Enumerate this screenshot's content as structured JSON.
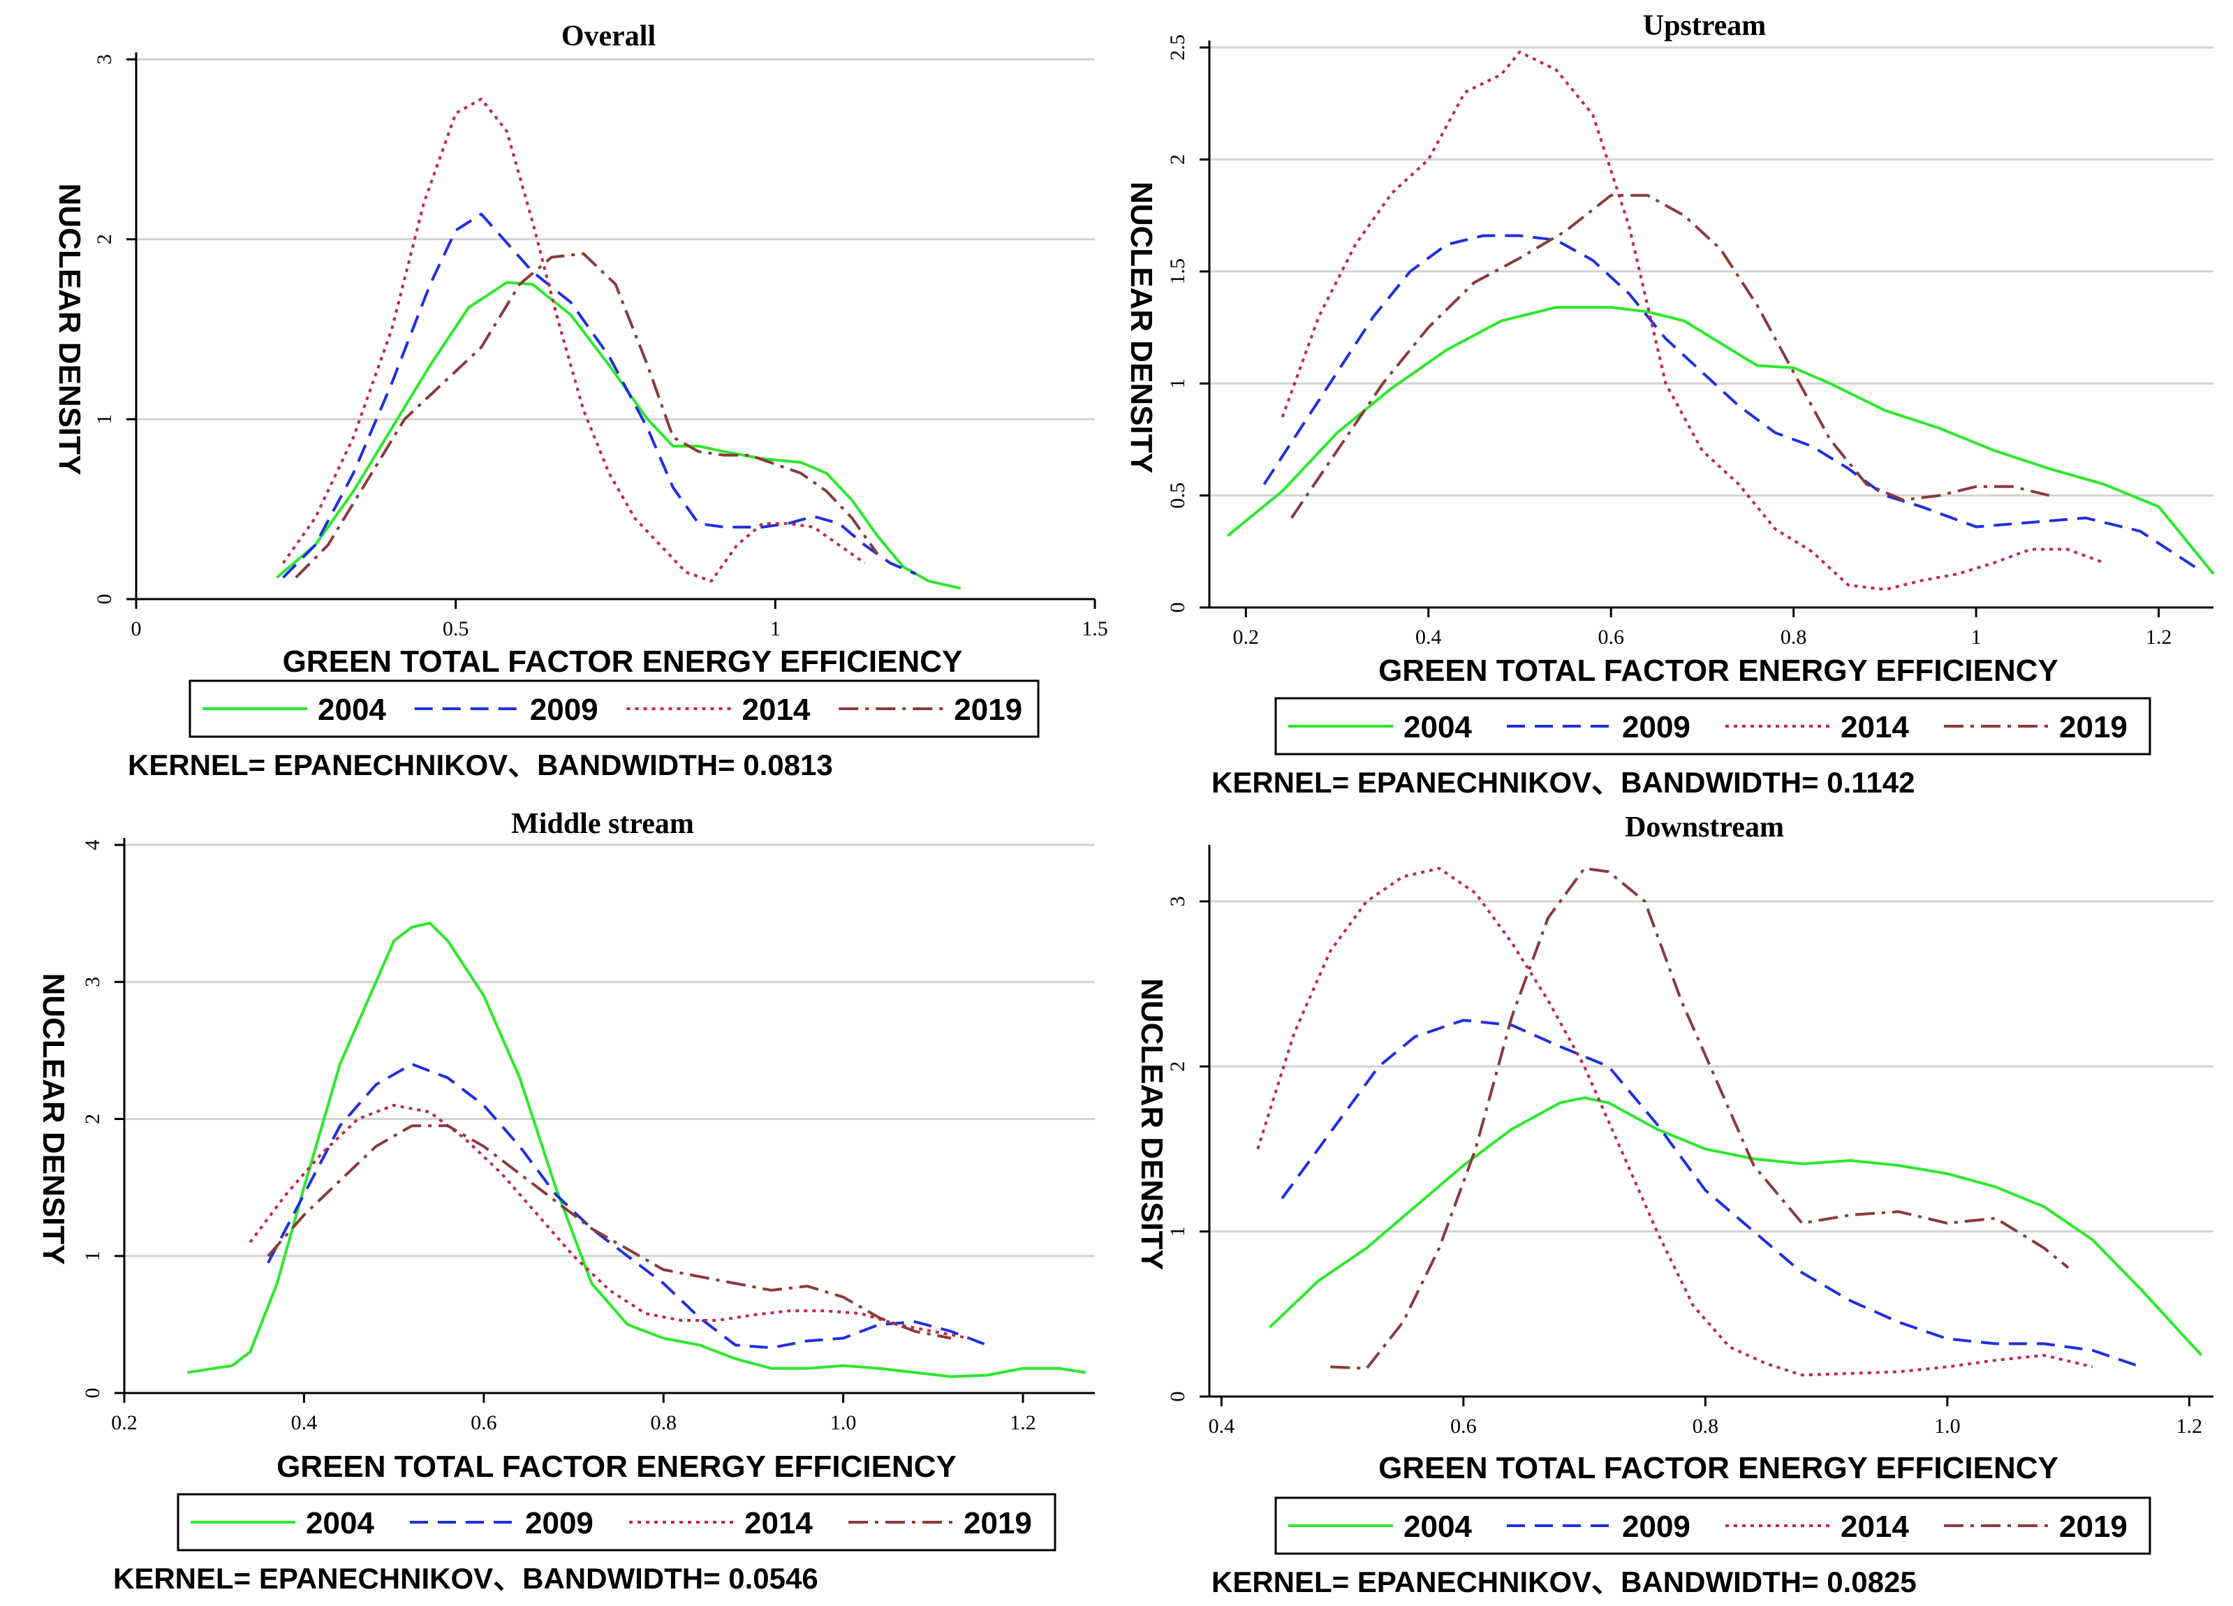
{
  "figure": {
    "panels_note": "2x2 grid of kernel density estimates"
  },
  "series_styles": [
    {
      "year": "2004",
      "color": "#2de82d",
      "dash": "none"
    },
    {
      "year": "2009",
      "color": "#1f2fe0",
      "dash": "dashed"
    },
    {
      "year": "2014",
      "color": "#c0284a",
      "dash": "dotted"
    },
    {
      "year": "2019",
      "color": "#8a3a3a",
      "dash": "dashdot"
    }
  ],
  "chart_data": [
    {
      "type": "line",
      "title": "Overall",
      "xlabel": "GREEN TOTAL FACTOR ENERGY EFFICIENCY",
      "ylabel": "NUCLEAR DENSITY",
      "xlim": [
        0,
        1.5
      ],
      "ylim": [
        0,
        3
      ],
      "xticks": [
        0,
        0.5,
        1,
        1.5
      ],
      "xtick_labels": [
        "0",
        "0.5",
        "1",
        "1.5"
      ],
      "yticks": [
        0,
        1,
        2,
        3
      ],
      "ytick_labels": [
        "0",
        "1",
        "2",
        "3"
      ],
      "note": "KERNEL= EPANECHNIKOV、BANDWIDTH= 0.0813",
      "legend": [
        "2004",
        "2009",
        "2014",
        "2019"
      ],
      "series": [
        {
          "name": "2004",
          "x": [
            0.22,
            0.28,
            0.34,
            0.4,
            0.46,
            0.52,
            0.58,
            0.62,
            0.68,
            0.74,
            0.8,
            0.84,
            0.88,
            0.92,
            0.98,
            1.04,
            1.08,
            1.12,
            1.16,
            1.2,
            1.24,
            1.29
          ],
          "y": [
            0.12,
            0.3,
            0.6,
            0.95,
            1.3,
            1.62,
            1.76,
            1.75,
            1.58,
            1.3,
            1.0,
            0.85,
            0.85,
            0.82,
            0.78,
            0.76,
            0.7,
            0.55,
            0.35,
            0.18,
            0.1,
            0.06
          ]
        },
        {
          "name": "2009",
          "x": [
            0.23,
            0.28,
            0.34,
            0.4,
            0.46,
            0.5,
            0.54,
            0.58,
            0.62,
            0.68,
            0.74,
            0.8,
            0.84,
            0.88,
            0.92,
            0.98,
            1.02,
            1.06,
            1.1,
            1.14,
            1.18,
            1.22
          ],
          "y": [
            0.12,
            0.3,
            0.7,
            1.2,
            1.75,
            2.05,
            2.14,
            1.98,
            1.82,
            1.65,
            1.35,
            0.95,
            0.62,
            0.42,
            0.4,
            0.4,
            0.42,
            0.46,
            0.42,
            0.3,
            0.2,
            0.14
          ]
        },
        {
          "name": "2014",
          "x": [
            0.23,
            0.28,
            0.34,
            0.4,
            0.45,
            0.5,
            0.54,
            0.58,
            0.62,
            0.66,
            0.7,
            0.74,
            0.78,
            0.82,
            0.86,
            0.9,
            0.94,
            0.98,
            1.02,
            1.06,
            1.1,
            1.14
          ],
          "y": [
            0.2,
            0.45,
            0.9,
            1.5,
            2.2,
            2.7,
            2.78,
            2.6,
            2.1,
            1.55,
            1.05,
            0.7,
            0.45,
            0.3,
            0.15,
            0.1,
            0.3,
            0.42,
            0.42,
            0.4,
            0.3,
            0.2
          ]
        },
        {
          "name": "2019",
          "x": [
            0.25,
            0.3,
            0.36,
            0.42,
            0.48,
            0.54,
            0.6,
            0.65,
            0.7,
            0.75,
            0.8,
            0.84,
            0.88,
            0.92,
            0.96,
            1.0,
            1.04,
            1.08,
            1.12,
            1.16
          ],
          "y": [
            0.12,
            0.3,
            0.65,
            1.0,
            1.2,
            1.4,
            1.75,
            1.9,
            1.92,
            1.75,
            1.3,
            0.9,
            0.82,
            0.8,
            0.8,
            0.75,
            0.7,
            0.6,
            0.45,
            0.25
          ]
        }
      ]
    },
    {
      "type": "line",
      "title": "Upstream",
      "xlabel": "GREEN TOTAL FACTOR ENERGY EFFICIENCY",
      "ylabel": "NUCLEAR DENSITY",
      "xlim": [
        0.16,
        1.26
      ],
      "ylim": [
        0,
        2.5
      ],
      "xticks": [
        0.2,
        0.4,
        0.6,
        0.8,
        1,
        1.2
      ],
      "xtick_labels": [
        "0.2",
        "0.4",
        "0.6",
        "0.8",
        "1",
        "1.2"
      ],
      "yticks": [
        0,
        0.5,
        1,
        1.5,
        2,
        2.5
      ],
      "ytick_labels": [
        "0",
        "0.5",
        "1",
        "1.5",
        "2",
        "2.5"
      ],
      "note": "KERNEL= EPANECHNIKOV、BANDWIDTH= 0.1142",
      "legend": [
        "2004",
        "2009",
        "2014",
        "2019"
      ],
      "series": [
        {
          "name": "2004",
          "x": [
            0.18,
            0.24,
            0.3,
            0.36,
            0.42,
            0.48,
            0.54,
            0.6,
            0.64,
            0.68,
            0.72,
            0.76,
            0.8,
            0.84,
            0.9,
            0.96,
            1.02,
            1.08,
            1.14,
            1.2,
            1.26
          ],
          "y": [
            0.32,
            0.52,
            0.78,
            0.98,
            1.15,
            1.28,
            1.34,
            1.34,
            1.32,
            1.28,
            1.18,
            1.08,
            1.07,
            1.0,
            0.88,
            0.8,
            0.7,
            0.62,
            0.55,
            0.45,
            0.15
          ]
        },
        {
          "name": "2009",
          "x": [
            0.22,
            0.26,
            0.3,
            0.34,
            0.38,
            0.42,
            0.46,
            0.5,
            0.54,
            0.58,
            0.62,
            0.66,
            0.7,
            0.74,
            0.78,
            0.82,
            0.86,
            0.9,
            0.94,
            1.0,
            1.06,
            1.12,
            1.18,
            1.24
          ],
          "y": [
            0.55,
            0.8,
            1.05,
            1.3,
            1.5,
            1.62,
            1.66,
            1.66,
            1.64,
            1.55,
            1.4,
            1.2,
            1.05,
            0.9,
            0.78,
            0.72,
            0.62,
            0.5,
            0.45,
            0.36,
            0.38,
            0.4,
            0.34,
            0.18
          ]
        },
        {
          "name": "2014",
          "x": [
            0.24,
            0.28,
            0.32,
            0.36,
            0.4,
            0.44,
            0.48,
            0.5,
            0.54,
            0.58,
            0.62,
            0.66,
            0.7,
            0.74,
            0.78,
            0.82,
            0.86,
            0.9,
            0.94,
            0.98,
            1.02,
            1.06,
            1.1,
            1.14
          ],
          "y": [
            0.85,
            1.3,
            1.62,
            1.85,
            2.0,
            2.3,
            2.38,
            2.48,
            2.4,
            2.2,
            1.7,
            1.0,
            0.7,
            0.55,
            0.35,
            0.25,
            0.1,
            0.08,
            0.12,
            0.15,
            0.2,
            0.26,
            0.26,
            0.2
          ]
        },
        {
          "name": "2019",
          "x": [
            0.25,
            0.3,
            0.35,
            0.4,
            0.45,
            0.5,
            0.55,
            0.6,
            0.64,
            0.68,
            0.72,
            0.76,
            0.8,
            0.84,
            0.88,
            0.92,
            0.96,
            1.0,
            1.04,
            1.08
          ],
          "y": [
            0.4,
            0.7,
            1.0,
            1.25,
            1.45,
            1.56,
            1.68,
            1.84,
            1.84,
            1.75,
            1.6,
            1.35,
            1.05,
            0.75,
            0.55,
            0.48,
            0.5,
            0.54,
            0.54,
            0.5
          ]
        }
      ]
    },
    {
      "type": "line",
      "title": "Middle stream",
      "xlabel": "GREEN TOTAL FACTOR ENERGY EFFICIENCY",
      "ylabel": "NUCLEAR DENSITY",
      "xlim": [
        0.2,
        1.28
      ],
      "ylim": [
        0,
        4
      ],
      "xticks": [
        0.2,
        0.4,
        0.6,
        0.8,
        1.0,
        1.2
      ],
      "xtick_labels": [
        "0.2",
        "0.4",
        "0.6",
        "0.8",
        "1.0",
        "1.2"
      ],
      "yticks": [
        0,
        1,
        2,
        3,
        4
      ],
      "ytick_labels": [
        "0",
        "1",
        "2",
        "3",
        "4"
      ],
      "note": "KERNEL= EPANECHNIKOV、BANDWIDTH= 0.0546",
      "legend": [
        "2004",
        "2009",
        "2014",
        "2019"
      ],
      "series": [
        {
          "name": "2004",
          "x": [
            0.27,
            0.3,
            0.32,
            0.34,
            0.37,
            0.4,
            0.44,
            0.48,
            0.5,
            0.52,
            0.54,
            0.56,
            0.6,
            0.64,
            0.68,
            0.72,
            0.76,
            0.8,
            0.84,
            0.88,
            0.92,
            0.96,
            1.0,
            1.04,
            1.08,
            1.12,
            1.16,
            1.2,
            1.24,
            1.27
          ],
          "y": [
            0.15,
            0.18,
            0.2,
            0.3,
            0.8,
            1.5,
            2.4,
            3.0,
            3.3,
            3.4,
            3.43,
            3.3,
            2.9,
            2.3,
            1.5,
            0.8,
            0.5,
            0.4,
            0.35,
            0.25,
            0.18,
            0.18,
            0.2,
            0.18,
            0.15,
            0.12,
            0.13,
            0.18,
            0.18,
            0.15
          ]
        },
        {
          "name": "2009",
          "x": [
            0.36,
            0.4,
            0.44,
            0.48,
            0.52,
            0.56,
            0.6,
            0.64,
            0.68,
            0.72,
            0.76,
            0.8,
            0.84,
            0.88,
            0.92,
            0.96,
            1.0,
            1.04,
            1.08,
            1.12,
            1.16
          ],
          "y": [
            0.95,
            1.45,
            1.95,
            2.25,
            2.4,
            2.3,
            2.1,
            1.8,
            1.45,
            1.2,
            1.0,
            0.8,
            0.55,
            0.35,
            0.33,
            0.38,
            0.4,
            0.5,
            0.52,
            0.45,
            0.35
          ]
        },
        {
          "name": "2014",
          "x": [
            0.34,
            0.38,
            0.42,
            0.46,
            0.5,
            0.54,
            0.58,
            0.62,
            0.66,
            0.7,
            0.74,
            0.78,
            0.82,
            0.86,
            0.9,
            0.94,
            0.98,
            1.02,
            1.06,
            1.1,
            1.14
          ],
          "y": [
            1.1,
            1.45,
            1.75,
            2.0,
            2.1,
            2.05,
            1.85,
            1.6,
            1.3,
            1.0,
            0.75,
            0.58,
            0.53,
            0.53,
            0.57,
            0.6,
            0.6,
            0.58,
            0.5,
            0.45,
            0.4
          ]
        },
        {
          "name": "2019",
          "x": [
            0.36,
            0.4,
            0.44,
            0.48,
            0.52,
            0.56,
            0.6,
            0.64,
            0.68,
            0.72,
            0.76,
            0.8,
            0.84,
            0.88,
            0.92,
            0.96,
            1.0,
            1.04,
            1.08,
            1.12
          ],
          "y": [
            1.0,
            1.3,
            1.55,
            1.8,
            1.95,
            1.95,
            1.8,
            1.6,
            1.4,
            1.2,
            1.05,
            0.9,
            0.85,
            0.8,
            0.75,
            0.78,
            0.7,
            0.55,
            0.45,
            0.4
          ]
        }
      ]
    },
    {
      "type": "line",
      "title": "Downstream",
      "xlabel": "GREEN TOTAL FACTOR ENERGY EFFICIENCY",
      "ylabel": "NUCLEAR DENSITY",
      "xlim": [
        0.39,
        1.22
      ],
      "ylim": [
        0,
        3.3
      ],
      "xticks": [
        0.4,
        0.6,
        0.8,
        1.0,
        1.2
      ],
      "xtick_labels": [
        "0.4",
        "0.6",
        "0.8",
        "1.0",
        "1.2"
      ],
      "yticks": [
        0,
        1,
        2,
        3
      ],
      "ytick_labels": [
        "0",
        "1",
        "2",
        "3"
      ],
      "note": "KERNEL= EPANECHNIKOV、BANDWIDTH= 0.0825",
      "legend": [
        "2004",
        "2009",
        "2014",
        "2019"
      ],
      "series": [
        {
          "name": "2004",
          "x": [
            0.44,
            0.48,
            0.52,
            0.56,
            0.6,
            0.64,
            0.68,
            0.7,
            0.72,
            0.76,
            0.8,
            0.84,
            0.88,
            0.92,
            0.96,
            1.0,
            1.04,
            1.08,
            1.12,
            1.16,
            1.21
          ],
          "y": [
            0.42,
            0.7,
            0.9,
            1.15,
            1.4,
            1.62,
            1.78,
            1.81,
            1.78,
            1.62,
            1.5,
            1.44,
            1.41,
            1.43,
            1.4,
            1.35,
            1.27,
            1.15,
            0.95,
            0.65,
            0.25
          ]
        },
        {
          "name": "2009",
          "x": [
            0.45,
            0.49,
            0.53,
            0.56,
            0.6,
            0.64,
            0.68,
            0.72,
            0.76,
            0.8,
            0.84,
            0.88,
            0.92,
            0.96,
            1.0,
            1.04,
            1.08,
            1.12,
            1.16
          ],
          "y": [
            1.2,
            1.6,
            2.0,
            2.18,
            2.28,
            2.25,
            2.12,
            2.0,
            1.65,
            1.25,
            1.0,
            0.75,
            0.58,
            0.45,
            0.35,
            0.32,
            0.32,
            0.28,
            0.18
          ]
        },
        {
          "name": "2014",
          "x": [
            0.43,
            0.46,
            0.49,
            0.52,
            0.55,
            0.58,
            0.61,
            0.64,
            0.67,
            0.7,
            0.73,
            0.76,
            0.79,
            0.82,
            0.85,
            0.88,
            0.92,
            0.96,
            1.0,
            1.04,
            1.08,
            1.12
          ],
          "y": [
            1.5,
            2.2,
            2.7,
            3.0,
            3.15,
            3.2,
            3.05,
            2.75,
            2.4,
            2.0,
            1.5,
            1.0,
            0.55,
            0.3,
            0.2,
            0.13,
            0.14,
            0.15,
            0.18,
            0.22,
            0.25,
            0.18
          ]
        },
        {
          "name": "2019",
          "x": [
            0.49,
            0.52,
            0.55,
            0.58,
            0.61,
            0.64,
            0.67,
            0.7,
            0.72,
            0.75,
            0.78,
            0.81,
            0.84,
            0.88,
            0.92,
            0.96,
            1.0,
            1.04,
            1.08,
            1.1
          ],
          "y": [
            0.18,
            0.17,
            0.45,
            0.9,
            1.5,
            2.3,
            2.9,
            3.2,
            3.18,
            3.0,
            2.4,
            1.9,
            1.4,
            1.05,
            1.1,
            1.12,
            1.05,
            1.08,
            0.9,
            0.78
          ]
        }
      ]
    }
  ]
}
